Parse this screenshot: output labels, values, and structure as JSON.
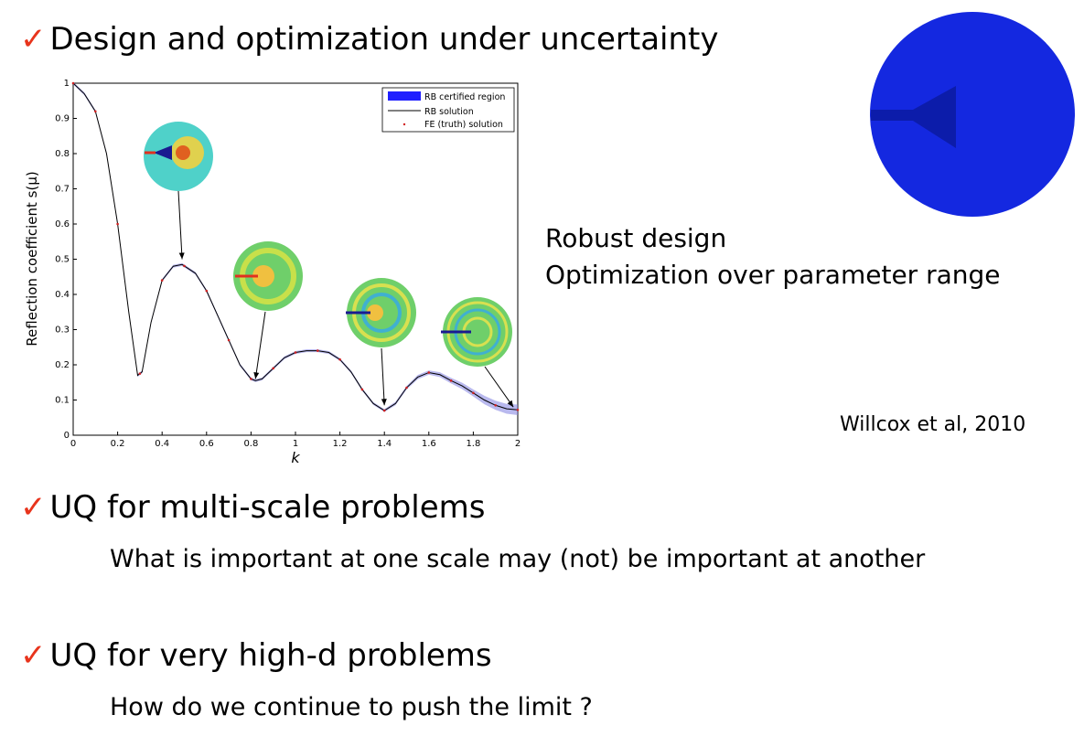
{
  "headings": [
    {
      "check": "✓",
      "text": "Design and optimization under uncertainty"
    },
    {
      "check": "✓",
      "text": "UQ for multi-scale problems"
    },
    {
      "check": "✓",
      "text": "UQ for very high-d problems"
    }
  ],
  "subtexts": [
    "What is important at one scale may (not) be important at another",
    "How do we continue to push the limit ?"
  ],
  "side_text": [
    "Robust design",
    "Optimization over parameter range"
  ],
  "citation": "Willcox et al, 2010",
  "colors": {
    "check": "#e8341c",
    "band": "#1f1fff",
    "disk": "#1428e0"
  },
  "chart_data": {
    "type": "line",
    "xlabel": "k",
    "ylabel": "Reflection coefficient s(μ)",
    "xlim": [
      0,
      2
    ],
    "ylim": [
      0,
      1
    ],
    "xticks": [
      "0",
      "0.2",
      "0.4",
      "0.6",
      "0.8",
      "1",
      "1.2",
      "1.4",
      "1.6",
      "1.8",
      "2"
    ],
    "yticks": [
      "0",
      "0.1",
      "0.2",
      "0.3",
      "0.4",
      "0.5",
      "0.6",
      "0.7",
      "0.8",
      "0.9",
      "1"
    ],
    "legend": {
      "position": "top-right",
      "entries": [
        "RB certified region",
        "RB solution",
        "FE (truth) solution"
      ]
    },
    "series": [
      {
        "name": "RB solution",
        "x": [
          0,
          0.05,
          0.1,
          0.15,
          0.2,
          0.25,
          0.29,
          0.31,
          0.35,
          0.4,
          0.45,
          0.49,
          0.55,
          0.6,
          0.65,
          0.7,
          0.75,
          0.8,
          0.82,
          0.85,
          0.9,
          0.95,
          1.0,
          1.05,
          1.1,
          1.15,
          1.2,
          1.25,
          1.3,
          1.35,
          1.4,
          1.45,
          1.5,
          1.55,
          1.6,
          1.65,
          1.7,
          1.75,
          1.8,
          1.85,
          1.9,
          1.95,
          2.0
        ],
        "y": [
          1.0,
          0.97,
          0.92,
          0.8,
          0.6,
          0.35,
          0.17,
          0.18,
          0.32,
          0.44,
          0.48,
          0.485,
          0.46,
          0.41,
          0.34,
          0.27,
          0.2,
          0.16,
          0.155,
          0.16,
          0.19,
          0.22,
          0.235,
          0.24,
          0.24,
          0.235,
          0.215,
          0.18,
          0.13,
          0.09,
          0.07,
          0.09,
          0.135,
          0.165,
          0.178,
          0.172,
          0.155,
          0.14,
          0.12,
          0.1,
          0.085,
          0.075,
          0.072
        ]
      }
    ],
    "band_halfwidth": [
      0.004,
      0.004,
      0.004,
      0.004,
      0.004,
      0.004,
      0.004,
      0.004,
      0.004,
      0.004,
      0.004,
      0.004,
      0.004,
      0.004,
      0.004,
      0.004,
      0.004,
      0.004,
      0.004,
      0.004,
      0.004,
      0.004,
      0.004,
      0.004,
      0.004,
      0.004,
      0.004,
      0.004,
      0.004,
      0.004,
      0.004,
      0.005,
      0.005,
      0.006,
      0.006,
      0.007,
      0.008,
      0.009,
      0.01,
      0.012,
      0.013,
      0.014,
      0.015
    ],
    "fe_points_x": [
      0.0,
      0.1,
      0.2,
      0.3,
      0.4,
      0.5,
      0.6,
      0.7,
      0.8,
      0.9,
      1.0,
      1.1,
      1.2,
      1.3,
      1.4,
      1.5,
      1.6,
      1.7,
      1.8,
      1.9,
      2.0
    ],
    "annotations": [
      {
        "x": 0.49,
        "y": 0.5
      },
      {
        "x": 0.82,
        "y": 0.16
      },
      {
        "x": 1.4,
        "y": 0.085
      },
      {
        "x": 1.98,
        "y": 0.08
      }
    ]
  }
}
